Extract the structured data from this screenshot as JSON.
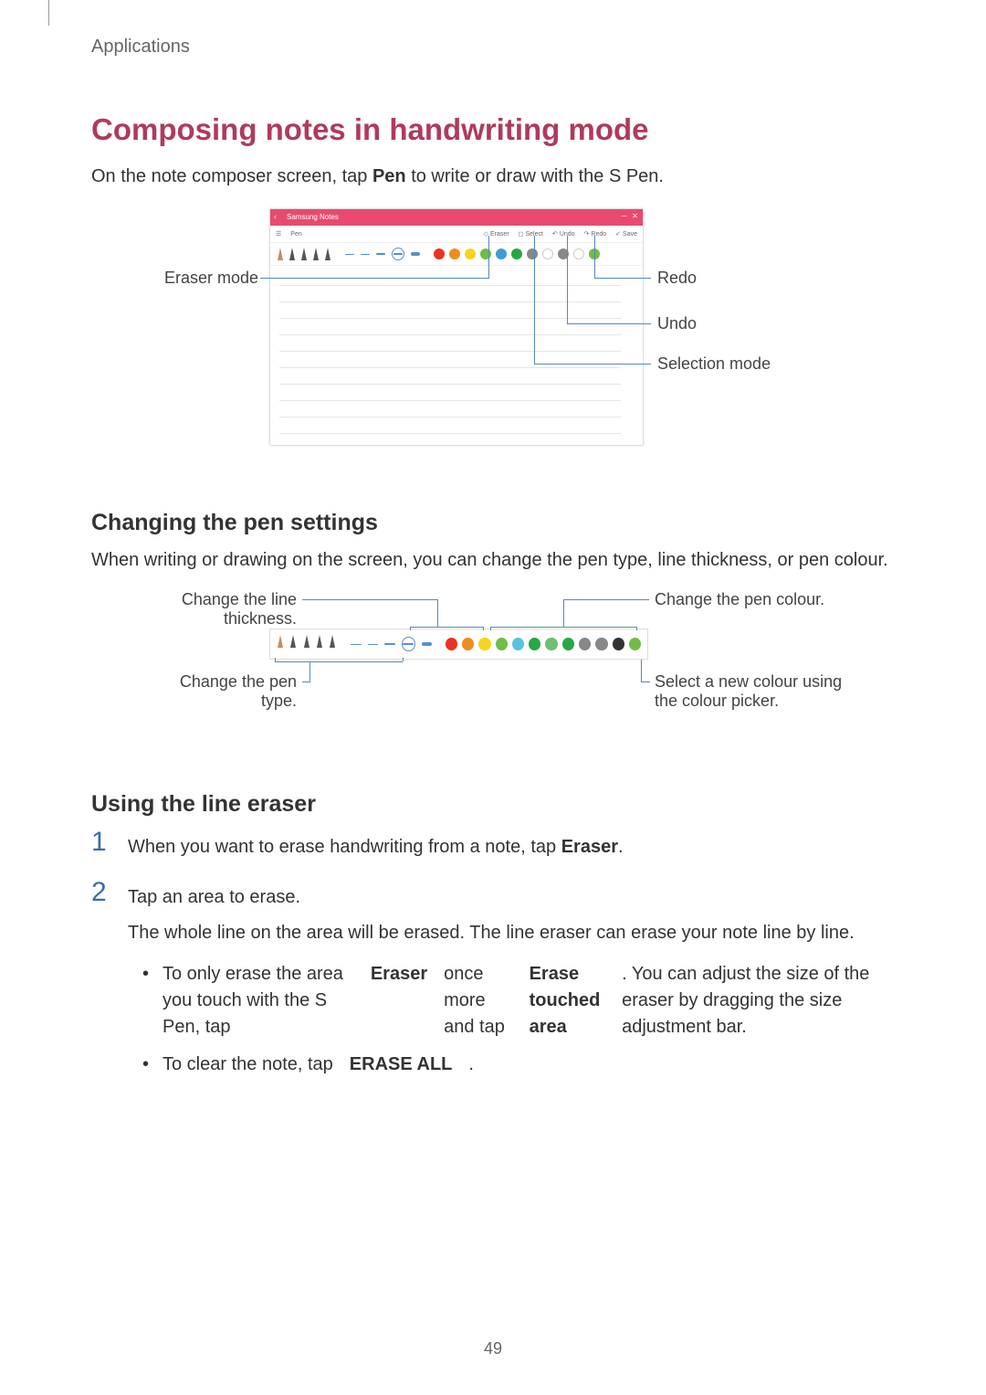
{
  "header": {
    "section": "Applications"
  },
  "title": "Composing notes in handwriting mode",
  "intro": {
    "pre": "On the note composer screen, tap ",
    "bold": "Pen",
    "post": " to write or draw with the S Pen."
  },
  "figure1": {
    "titlebar": {
      "app_name": "Samsung Notes",
      "color": "#e84a6f"
    },
    "toolbar_items": {
      "left1": "☰",
      "left2": "Pen",
      "eraser": "Eraser",
      "select": "Select",
      "undo": "Undo",
      "redo": "Redo",
      "save": "Save"
    },
    "pen_tips_colors": [
      "#c98b5e",
      "#555555",
      "#555555",
      "#555555",
      "#555555"
    ],
    "thickness_levels": [
      "thin",
      "thin",
      "med",
      "med"
    ],
    "thickness_selected_color": "#5a8fc7",
    "swatch_colors": [
      "#e93323",
      "#f08b1d",
      "#f6d41f",
      "#6fbd45",
      "#3a9dd8",
      "#28a745",
      "#888888",
      "#ffffff",
      "#888888",
      "#ffffff",
      "#6fbd45"
    ],
    "callouts": {
      "eraser_mode": "Eraser mode",
      "redo": "Redo",
      "undo": "Undo",
      "selection_mode": "Selection mode"
    },
    "callout_color": "#5588bb"
  },
  "section2": {
    "heading": "Changing the pen settings",
    "body": "When writing or drawing on the screen, you can change the pen type, line thickness, or pen colour."
  },
  "figure2": {
    "pen_tips_colors": [
      "#c98b5e",
      "#555555",
      "#555555",
      "#555555",
      "#555555"
    ],
    "swatch_colors": [
      "#e93323",
      "#f08b1d",
      "#f6d41f",
      "#6fbd45",
      "#58c3e0",
      "#28a745",
      "#6fbf73",
      "#28a745",
      "#888888",
      "#888888",
      "#333333",
      "#6fbd45"
    ],
    "callouts": {
      "line_thickness": "Change the line thickness.",
      "pen_type": "Change the pen type.",
      "pen_colour": "Change the pen colour.",
      "colour_picker": "Select a new colour using the colour picker."
    }
  },
  "section3": {
    "heading": "Using the line eraser",
    "step1": {
      "pre": "When you want to erase handwriting from a note, tap ",
      "bold": "Eraser",
      "post": "."
    },
    "step2_intro": "Tap an area to erase.",
    "step2_body": "The whole line on the area will be erased. The line eraser can erase your note line by line.",
    "bullet1": {
      "pre": "To only erase the area you touch with the S Pen, tap ",
      "b1": "Eraser",
      "mid": " once more and tap ",
      "b2": "Erase touched area",
      "post": ". You can adjust the size of the eraser by dragging the size adjustment bar."
    },
    "bullet2": {
      "pre": "To clear the note, tap ",
      "bold": "ERASE ALL",
      "post": "."
    }
  },
  "page_number": "49"
}
